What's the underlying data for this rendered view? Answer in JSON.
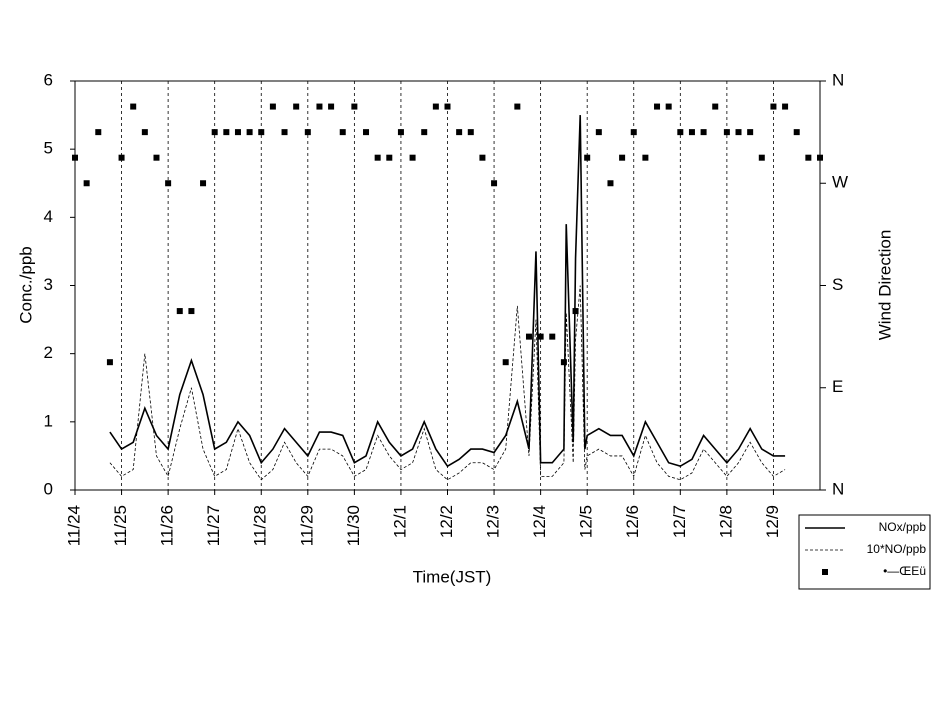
{
  "chart_data": {
    "type": "line",
    "xlabel": "Time(JST)",
    "ylabel": "Conc./ppb",
    "y2label": "Wind Direction",
    "xlim": [
      0,
      16
    ],
    "ylim": [
      0,
      6
    ],
    "y2lim": [
      0,
      360
    ],
    "xticks": [
      {
        "value": 0,
        "label": "11/24"
      },
      {
        "value": 1,
        "label": "11/25"
      },
      {
        "value": 2,
        "label": "11/26"
      },
      {
        "value": 3,
        "label": "11/27"
      },
      {
        "value": 4,
        "label": "11/28"
      },
      {
        "value": 5,
        "label": "11/29"
      },
      {
        "value": 6,
        "label": "11/30"
      },
      {
        "value": 7,
        "label": "12/1"
      },
      {
        "value": 8,
        "label": "12/2"
      },
      {
        "value": 9,
        "label": "12/3"
      },
      {
        "value": 10,
        "label": "12/4"
      },
      {
        "value": 11,
        "label": "12/5"
      },
      {
        "value": 12,
        "label": "12/6"
      },
      {
        "value": 13,
        "label": "12/7"
      },
      {
        "value": 14,
        "label": "12/8"
      },
      {
        "value": 15,
        "label": "12/9"
      }
    ],
    "yticks": [
      0,
      1,
      2,
      3,
      4,
      5,
      6
    ],
    "y2ticks": [
      {
        "value": 0,
        "label": "N"
      },
      {
        "value": 90,
        "label": "E"
      },
      {
        "value": 180,
        "label": "S"
      },
      {
        "value": 270,
        "label": "W"
      },
      {
        "value": 360,
        "label": "N"
      }
    ],
    "xgrid": true,
    "x": [
      0.75,
      1,
      1.25,
      1.5,
      1.75,
      2,
      2.25,
      2.5,
      2.75,
      3,
      3.25,
      3.5,
      3.75,
      4,
      4.25,
      4.5,
      4.75,
      5,
      5.25,
      5.5,
      5.75,
      6,
      6.25,
      6.5,
      6.75,
      7,
      7.25,
      7.5,
      7.75,
      8,
      8.25,
      8.5,
      8.75,
      9,
      9.25,
      9.5,
      9.75,
      9.9,
      10,
      10.25,
      10.5,
      10.55,
      10.7,
      10.75,
      10.85,
      10.95,
      11,
      11.25,
      11.5,
      11.75,
      12,
      12.25,
      12.5,
      12.75,
      13,
      13.25,
      13.5,
      13.75,
      14,
      14.25,
      14.5,
      14.75,
      15,
      15.25
    ],
    "series": [
      {
        "name": "NOx/ppb",
        "type": "line",
        "color": "#000000",
        "line_style": "solid",
        "values": [
          0.85,
          0.6,
          0.7,
          1.2,
          0.8,
          0.6,
          1.4,
          1.9,
          1.4,
          0.6,
          0.7,
          1.0,
          0.8,
          0.4,
          0.6,
          0.9,
          0.7,
          0.5,
          0.85,
          0.85,
          0.8,
          0.4,
          0.5,
          1.0,
          0.7,
          0.5,
          0.6,
          1.0,
          0.6,
          0.35,
          0.45,
          0.6,
          0.6,
          0.55,
          0.8,
          1.3,
          0.6,
          3.5,
          0.4,
          0.4,
          0.6,
          3.9,
          0.7,
          3.4,
          5.5,
          0.6,
          0.8,
          0.9,
          0.8,
          0.8,
          0.5,
          1.0,
          0.7,
          0.4,
          0.35,
          0.45,
          0.8,
          0.6,
          0.4,
          0.6,
          0.9,
          0.6,
          0.5,
          0.5
        ]
      },
      {
        "name": "10*NO/ppb",
        "type": "line",
        "color": "#000000",
        "line_style": "dashed",
        "values": [
          0.4,
          0.2,
          0.3,
          2.0,
          0.5,
          0.2,
          0.9,
          1.5,
          0.6,
          0.2,
          0.3,
          0.9,
          0.4,
          0.15,
          0.3,
          0.7,
          0.4,
          0.2,
          0.6,
          0.6,
          0.5,
          0.2,
          0.3,
          0.8,
          0.5,
          0.3,
          0.4,
          0.9,
          0.3,
          0.15,
          0.25,
          0.4,
          0.4,
          0.3,
          0.6,
          2.7,
          0.5,
          2.5,
          0.2,
          0.2,
          0.4,
          2.6,
          0.4,
          2.2,
          3.0,
          0.3,
          0.5,
          0.6,
          0.5,
          0.5,
          0.2,
          0.8,
          0.4,
          0.2,
          0.15,
          0.25,
          0.6,
          0.4,
          0.2,
          0.4,
          0.7,
          0.4,
          0.2,
          0.3
        ]
      },
      {
        "name": "•—ŒEü",
        "type": "scatter",
        "color": "#000000",
        "axis": "y2",
        "x": [
          0,
          0.25,
          0.5,
          0.75,
          1,
          1.25,
          1.5,
          1.75,
          2,
          2.25,
          2.5,
          2.75,
          3,
          3.25,
          3.5,
          3.75,
          4,
          4.25,
          4.5,
          4.75,
          5,
          5.25,
          5.5,
          5.75,
          6,
          6.25,
          6.5,
          6.75,
          7,
          7.25,
          7.5,
          7.75,
          8,
          8.25,
          8.5,
          8.75,
          9,
          9.25,
          9.5,
          9.75,
          10,
          10.25,
          10.5,
          10.75,
          11,
          11.25,
          11.5,
          11.75,
          12,
          12.25,
          12.5,
          12.75,
          13,
          13.25,
          13.5,
          13.75,
          14,
          14.25,
          14.5,
          14.75,
          15,
          15.25,
          15.5,
          15.75,
          16
        ],
        "values": [
          292.5,
          270,
          315,
          112.5,
          292.5,
          337.5,
          315,
          292.5,
          270,
          157.5,
          157.5,
          270,
          315,
          315,
          315,
          315,
          315,
          337.5,
          315,
          337.5,
          315,
          337.5,
          337.5,
          315,
          337.5,
          315,
          292.5,
          292.5,
          315,
          292.5,
          315,
          337.5,
          337.5,
          315,
          315,
          292.5,
          270,
          112.5,
          337.5,
          135,
          135,
          135,
          112.5,
          157.5,
          292.5,
          315,
          270,
          292.5,
          315,
          292.5,
          337.5,
          337.5,
          315,
          315,
          315,
          337.5,
          315,
          315,
          315,
          292.5,
          337.5,
          337.5,
          315,
          292.5,
          292.5
        ]
      }
    ]
  }
}
